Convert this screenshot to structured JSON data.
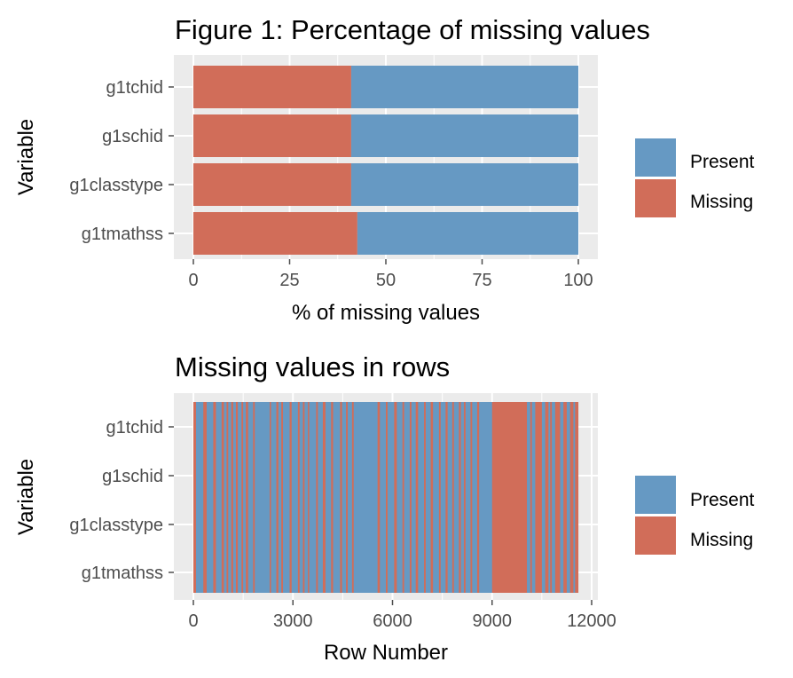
{
  "colors": {
    "present": "#6699c3",
    "missing": "#d16d59",
    "panel": "#ebebeb",
    "grid": "#ffffff"
  },
  "chart_data": [
    {
      "type": "bar",
      "orientation": "horizontal",
      "stacked": true,
      "title": "Figure 1: Percentage of missing values",
      "xlabel": "% of missing values",
      "ylabel": "Variable",
      "categories": [
        "g1tchid",
        "g1schid",
        "g1classtype",
        "g1tmathss"
      ],
      "series": [
        {
          "name": "Missing",
          "values": [
            41,
            41,
            41,
            42.6
          ]
        },
        {
          "name": "Present",
          "values": [
            59,
            59,
            59,
            57.4
          ]
        }
      ],
      "xlim": [
        0,
        100
      ],
      "xticks": [
        "0",
        "25",
        "50",
        "75",
        "100"
      ],
      "legend": [
        "Present",
        "Missing"
      ],
      "legend_position": "right"
    },
    {
      "type": "heatmap",
      "title": "Missing values in rows",
      "xlabel": "Row Number",
      "ylabel": "Variable",
      "categories": [
        "g1tchid",
        "g1schid",
        "g1classtype",
        "g1tmathss"
      ],
      "xlim": [
        0,
        12000
      ],
      "xticks": [
        "0",
        "3000",
        "6000",
        "9000",
        "12000"
      ],
      "total_rows": 11600,
      "missing_row_ranges": [
        [
          0,
          80
        ],
        [
          300,
          400
        ],
        [
          600,
          680
        ],
        [
          850,
          920
        ],
        [
          1000,
          1050
        ],
        [
          1140,
          1200
        ],
        [
          1280,
          1340
        ],
        [
          1450,
          1500
        ],
        [
          1580,
          1650
        ],
        [
          1800,
          1850
        ],
        [
          2300,
          2340
        ],
        [
          2500,
          2560
        ],
        [
          2650,
          2700
        ],
        [
          2900,
          2960
        ],
        [
          3150,
          3200
        ],
        [
          3300,
          3350
        ],
        [
          3450,
          3490
        ],
        [
          3700,
          3750
        ],
        [
          3900,
          3980
        ],
        [
          4150,
          4210
        ],
        [
          4420,
          4480
        ],
        [
          4600,
          4650
        ],
        [
          4780,
          4830
        ],
        [
          5550,
          5620
        ],
        [
          5800,
          5850
        ],
        [
          6050,
          6130
        ],
        [
          6300,
          6350
        ],
        [
          6520,
          6570
        ],
        [
          6700,
          6770
        ],
        [
          6950,
          7000
        ],
        [
          7150,
          7220
        ],
        [
          7400,
          7450
        ],
        [
          7600,
          7660
        ],
        [
          7800,
          7850
        ],
        [
          8000,
          8060
        ],
        [
          8150,
          8200
        ],
        [
          8350,
          8400
        ],
        [
          8550,
          8610
        ],
        [
          9000,
          10050
        ],
        [
          10150,
          10200
        ],
        [
          10300,
          10500
        ],
        [
          10600,
          10700
        ],
        [
          10750,
          10800
        ],
        [
          10900,
          11050
        ],
        [
          11150,
          11250
        ],
        [
          11350,
          11450
        ],
        [
          11500,
          11600
        ]
      ],
      "legend": [
        "Present",
        "Missing"
      ],
      "legend_position": "right"
    }
  ]
}
